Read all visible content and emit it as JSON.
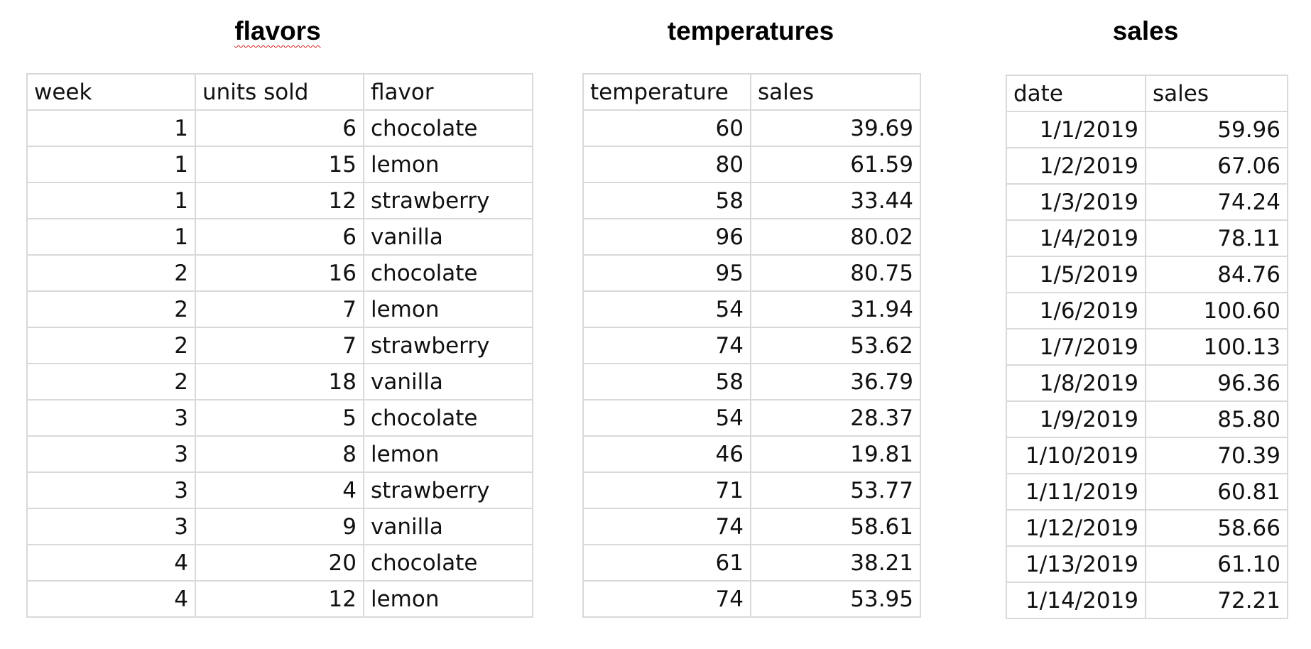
{
  "flavors": {
    "title": "flavors",
    "columns": [
      "week",
      "units sold",
      "flavor"
    ],
    "rows": [
      [
        "1",
        "6",
        "chocolate"
      ],
      [
        "1",
        "15",
        "lemon"
      ],
      [
        "1",
        "12",
        "strawberry"
      ],
      [
        "1",
        "6",
        "vanilla"
      ],
      [
        "2",
        "16",
        "chocolate"
      ],
      [
        "2",
        "7",
        "lemon"
      ],
      [
        "2",
        "7",
        "strawberry"
      ],
      [
        "2",
        "18",
        "vanilla"
      ],
      [
        "3",
        "5",
        "chocolate"
      ],
      [
        "3",
        "8",
        "lemon"
      ],
      [
        "3",
        "4",
        "strawberry"
      ],
      [
        "3",
        "9",
        "vanilla"
      ],
      [
        "4",
        "20",
        "chocolate"
      ],
      [
        "4",
        "12",
        "lemon"
      ]
    ]
  },
  "temperatures": {
    "title": "temperatures",
    "columns": [
      "temperature",
      "sales"
    ],
    "rows": [
      [
        "60",
        "39.69"
      ],
      [
        "80",
        "61.59"
      ],
      [
        "58",
        "33.44"
      ],
      [
        "96",
        "80.02"
      ],
      [
        "95",
        "80.75"
      ],
      [
        "54",
        "31.94"
      ],
      [
        "74",
        "53.62"
      ],
      [
        "58",
        "36.79"
      ],
      [
        "54",
        "28.37"
      ],
      [
        "46",
        "19.81"
      ],
      [
        "71",
        "53.77"
      ],
      [
        "74",
        "58.61"
      ],
      [
        "61",
        "38.21"
      ],
      [
        "74",
        "53.95"
      ]
    ]
  },
  "sales": {
    "title": "sales",
    "columns": [
      "date",
      "sales"
    ],
    "rows": [
      [
        "1/1/2019",
        "59.96"
      ],
      [
        "1/2/2019",
        "67.06"
      ],
      [
        "1/3/2019",
        "74.24"
      ],
      [
        "1/4/2019",
        "78.11"
      ],
      [
        "1/5/2019",
        "84.76"
      ],
      [
        "1/6/2019",
        "100.60"
      ],
      [
        "1/7/2019",
        "100.13"
      ],
      [
        "1/8/2019",
        "96.36"
      ],
      [
        "1/9/2019",
        "85.80"
      ],
      [
        "1/10/2019",
        "70.39"
      ],
      [
        "1/11/2019",
        "60.81"
      ],
      [
        "1/12/2019",
        "58.66"
      ],
      [
        "1/13/2019",
        "61.10"
      ],
      [
        "1/14/2019",
        "72.21"
      ]
    ]
  }
}
